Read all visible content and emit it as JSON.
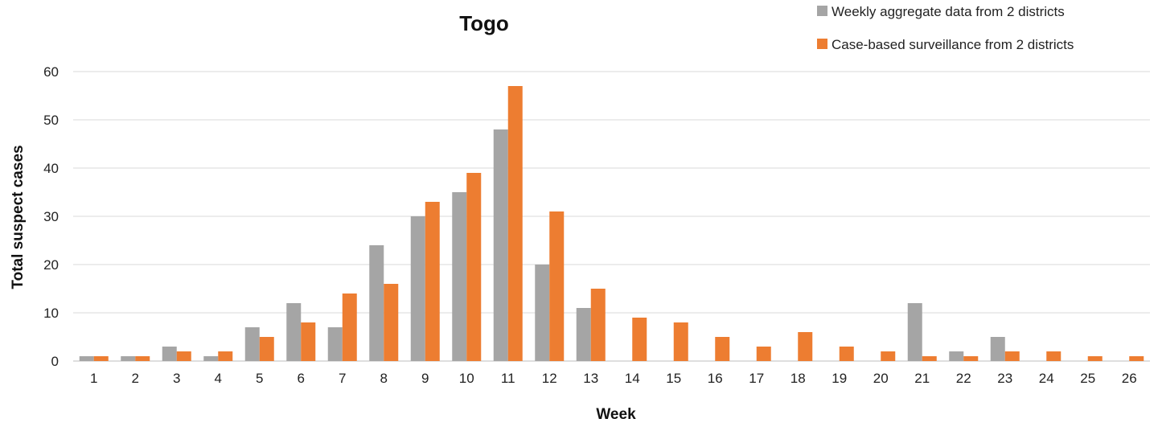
{
  "chart_data": {
    "type": "bar",
    "title": "Togo",
    "xlabel": "Week",
    "ylabel": "Total suspect cases",
    "ylim": [
      0,
      60
    ],
    "yticks": [
      0,
      10,
      20,
      30,
      40,
      50,
      60
    ],
    "grid": true,
    "legend_position": "top-right",
    "categories": [
      "1",
      "2",
      "3",
      "4",
      "5",
      "6",
      "7",
      "8",
      "9",
      "10",
      "11",
      "12",
      "13",
      "14",
      "15",
      "16",
      "17",
      "18",
      "19",
      "20",
      "21",
      "22",
      "23",
      "24",
      "25",
      "26"
    ],
    "series": [
      {
        "name": "Weekly aggregate data from 2 districts",
        "color": "#a5a5a5",
        "values": [
          1,
          1,
          3,
          1,
          7,
          12,
          7,
          24,
          30,
          35,
          48,
          20,
          11,
          0,
          0,
          0,
          0,
          0,
          0,
          0,
          12,
          2,
          5,
          0,
          0,
          0
        ]
      },
      {
        "name": "Case-based  surveillance from 2 districts",
        "color": "#ed7d31",
        "values": [
          1,
          1,
          2,
          2,
          5,
          8,
          14,
          16,
          33,
          39,
          57,
          31,
          15,
          9,
          8,
          5,
          3,
          6,
          3,
          2,
          1,
          1,
          2,
          2,
          1,
          1
        ]
      }
    ]
  }
}
